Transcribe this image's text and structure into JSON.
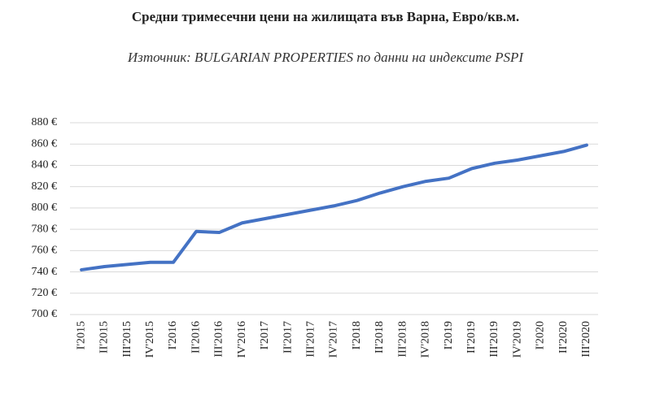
{
  "chart_data": {
    "type": "line",
    "title": "Средни тримесечни цени на жилищата във Варна, Евро/кв.м.",
    "subtitle": "Източник: BULGARIAN PROPERTIES по данни на индексите PSPI",
    "categories": [
      "I'2015",
      "II'2015",
      "III'2015",
      "IV'2015",
      "I'2016",
      "II'2016",
      "III'2016",
      "IV'2016",
      "I'2017",
      "II'2017",
      "III'2017",
      "IV'2017",
      "I'2018",
      "II'2018",
      "III'2018",
      "IV'2018",
      "I'2019",
      "II'2019",
      "III'2019",
      "IV'2019",
      "I'2020",
      "II'2020",
      "III'2020"
    ],
    "values": [
      742,
      745,
      747,
      749,
      749,
      778,
      777,
      786,
      790,
      794,
      798,
      802,
      807,
      814,
      820,
      825,
      828,
      837,
      842,
      845,
      849,
      853,
      859
    ],
    "color": "#4472c4",
    "ylim": [
      700,
      880
    ],
    "yticks": [
      {
        "value": 700,
        "label": "700 €"
      },
      {
        "value": 720,
        "label": "720 €"
      },
      {
        "value": 740,
        "label": "740 €"
      },
      {
        "value": 760,
        "label": "760 €"
      },
      {
        "value": 780,
        "label": "780 €"
      },
      {
        "value": 800,
        "label": "800 €"
      },
      {
        "value": 820,
        "label": "820 €"
      },
      {
        "value": 840,
        "label": "840 €"
      },
      {
        "value": 860,
        "label": "860 €"
      },
      {
        "value": 880,
        "label": "880 €"
      }
    ],
    "grid": true
  }
}
